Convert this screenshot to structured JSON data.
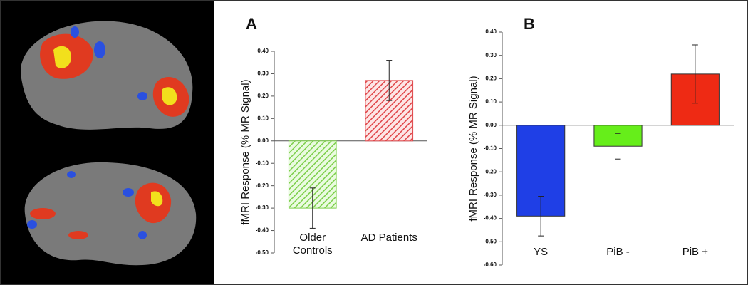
{
  "chart_data": [
    {
      "type": "bar",
      "panel": "A",
      "ylabel": "fMRI Response (% MR Signal)",
      "categories": [
        "Older Controls",
        "AD Patients"
      ],
      "values": [
        -0.3,
        0.27
      ],
      "errors": [
        0.09,
        0.09
      ],
      "colors": [
        "#7ccf4a",
        "#e0474a"
      ],
      "pattern": "hatch",
      "ylim": [
        -0.5,
        0.4
      ],
      "yticks": [
        {
          "value": 0.4,
          "label": "0.40"
        },
        {
          "value": 0.3,
          "label": "0.30"
        },
        {
          "value": 0.2,
          "label": "0.20"
        },
        {
          "value": 0.1,
          "label": "0.10"
        },
        {
          "value": 0,
          "label": "0.00"
        },
        {
          "value": -0.1,
          "label": "-0.10"
        },
        {
          "value": -0.2,
          "label": "-0.20"
        },
        {
          "value": -0.3,
          "label": "-0.30"
        },
        {
          "value": -0.4,
          "label": "-0.40"
        },
        {
          "value": -0.5,
          "label": "-0.50"
        }
      ]
    },
    {
      "type": "bar",
      "panel": "B",
      "ylabel": "fMRI Response (% MR Signal)",
      "categories": [
        "YS",
        "PiB -",
        "PiB +"
      ],
      "values": [
        -0.39,
        -0.09,
        0.22
      ],
      "errors": [
        0.085,
        0.055,
        0.125
      ],
      "colors": [
        "#1f3fe6",
        "#66ee1a",
        "#ee2a14"
      ],
      "pattern": "solid",
      "ylim": [
        -0.6,
        0.4
      ],
      "yticks": [
        {
          "value": 0.4,
          "label": "0.40"
        },
        {
          "value": 0.3,
          "label": "0.30"
        },
        {
          "value": 0.2,
          "label": "0.20"
        },
        {
          "value": 0.1,
          "label": "0.10"
        },
        {
          "value": 0,
          "label": "0.00"
        },
        {
          "value": -0.1,
          "label": "-0.10"
        },
        {
          "value": -0.2,
          "label": "-0.20"
        },
        {
          "value": -0.3,
          "label": "-0.30"
        },
        {
          "value": -0.4,
          "label": "-0.40"
        },
        {
          "value": -0.5,
          "label": "-0.50"
        },
        {
          "value": -0.6,
          "label": "-0.60"
        }
      ]
    }
  ]
}
